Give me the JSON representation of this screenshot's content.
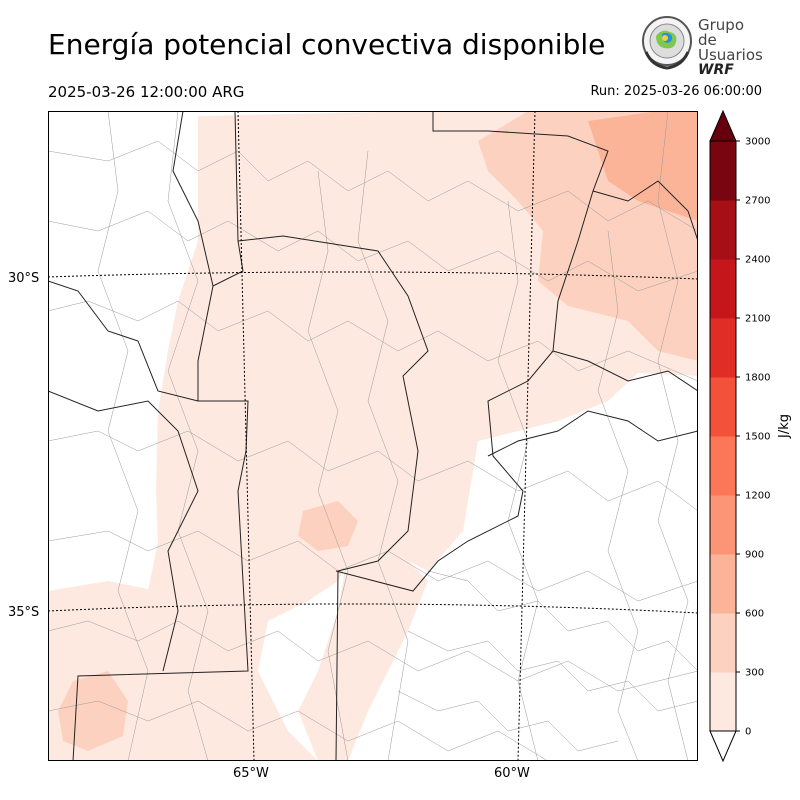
{
  "header": {
    "title": "Energía potencial convectiva disponible",
    "valid_time": "2025-03-26 12:00:00 ARG",
    "run_time": "Run: 2025-03-26 06:00:00"
  },
  "logo": {
    "line1": "Grupo de",
    "line2": "Usuarios",
    "line3": "WRF"
  },
  "map": {
    "latitude_labels": [
      "30°S",
      "35°S"
    ],
    "longitude_labels": [
      "65°W",
      "60°W"
    ]
  },
  "colorbar": {
    "unit": "J/kg",
    "levels": [
      0,
      300,
      600,
      900,
      1200,
      1500,
      1800,
      2100,
      2400,
      2700,
      3000
    ],
    "colors": [
      "#fee9e1",
      "#fdd1c0",
      "#fcb499",
      "#fc9576",
      "#fb7757",
      "#f4513a",
      "#e02e27",
      "#c4161b",
      "#a50f15",
      "#780510"
    ],
    "under_color": "#ffffff",
    "over_color": "#67000d",
    "tick_labels": [
      "0",
      "300",
      "600",
      "900",
      "1200",
      "1500",
      "1800",
      "2100",
      "2400",
      "2700",
      "3000"
    ]
  }
}
